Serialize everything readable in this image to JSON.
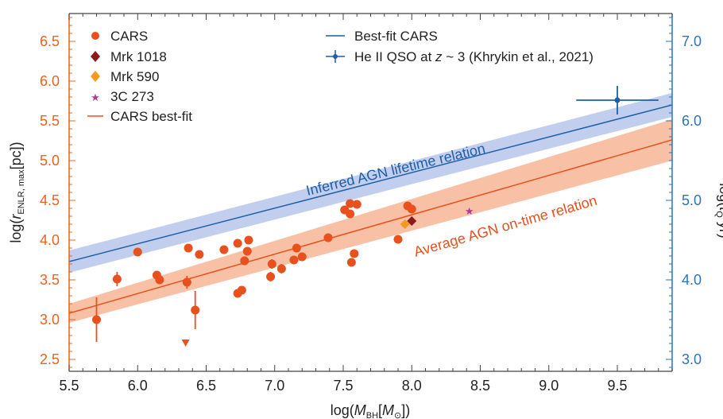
{
  "chart_data": {
    "type": "scatter",
    "xlabel": "log(M_BH[M_⊙])",
    "ylabel": "log(r_ENLR, max[pc])",
    "ylabel_right": "log(t_Q yr)",
    "xlim": [
      5.5,
      9.9
    ],
    "ylim": [
      2.35,
      6.85
    ],
    "y2lim": [
      2.85,
      7.35
    ],
    "x_ticks": [
      5.5,
      6.0,
      6.5,
      7.0,
      7.5,
      8.0,
      8.5,
      9.0,
      9.5
    ],
    "x_tick_labels": [
      "5.5",
      "6.0",
      "6.5",
      "7.0",
      "7.5",
      "8.0",
      "8.5",
      "9.0",
      "9.5"
    ],
    "y_ticks": [
      2.5,
      3.0,
      3.5,
      4.0,
      4.5,
      5.0,
      5.5,
      6.0,
      6.5
    ],
    "y_tick_labels": [
      "2.5",
      "3.0",
      "3.5",
      "4.0",
      "4.5",
      "5.0",
      "5.5",
      "6.0",
      "6.5"
    ],
    "y2_ticks": [
      3.0,
      4.0,
      5.0,
      6.0,
      7.0
    ],
    "y2_tick_labels": [
      "3.0",
      "4.0",
      "5.0",
      "6.0",
      "7.0"
    ],
    "colors": {
      "cars": "#e8501e",
      "mrk1018": "#8b1a1a",
      "mrk590": "#f39a1e",
      "three_c273": "#b03a9a",
      "blue": "#1f5fa6",
      "blue_band": "#aebde8",
      "orange_band": "#f6b08e",
      "left_axis": "#e8641e",
      "right_axis": "#2f73b7"
    },
    "series": [
      {
        "name": "CARS",
        "marker": "circle",
        "points": [
          {
            "x": 5.7,
            "y": 3.0,
            "yerr": 0.28
          },
          {
            "x": 5.85,
            "y": 3.51,
            "yerr": 0.09
          },
          {
            "x": 6.0,
            "y": 3.85
          },
          {
            "x": 6.14,
            "y": 3.56
          },
          {
            "x": 6.16,
            "y": 3.5
          },
          {
            "x": 6.36,
            "y": 3.47,
            "yerr": 0.08
          },
          {
            "x": 6.37,
            "y": 3.9
          },
          {
            "x": 6.42,
            "y": 3.12,
            "yerr": 0.24
          },
          {
            "x": 6.45,
            "y": 3.82
          },
          {
            "x": 6.63,
            "y": 3.88
          },
          {
            "x": 6.73,
            "y": 3.96
          },
          {
            "x": 6.73,
            "y": 3.33
          },
          {
            "x": 6.76,
            "y": 3.37
          },
          {
            "x": 6.78,
            "y": 3.74
          },
          {
            "x": 6.8,
            "y": 3.86
          },
          {
            "x": 6.81,
            "y": 4.0
          },
          {
            "x": 6.97,
            "y": 3.54,
            "yerr": 0.06
          },
          {
            "x": 6.98,
            "y": 3.7,
            "yerr": 0.06
          },
          {
            "x": 7.05,
            "y": 3.64,
            "yerr": 0.06
          },
          {
            "x": 7.14,
            "y": 3.75
          },
          {
            "x": 7.16,
            "y": 3.9,
            "yerr": 0.05
          },
          {
            "x": 7.2,
            "y": 3.79
          },
          {
            "x": 7.39,
            "y": 4.03
          },
          {
            "x": 7.51,
            "y": 4.38
          },
          {
            "x": 7.55,
            "y": 4.33
          },
          {
            "x": 7.55,
            "y": 4.46
          },
          {
            "x": 7.56,
            "y": 3.72
          },
          {
            "x": 7.58,
            "y": 3.83,
            "yerr": 0.05
          },
          {
            "x": 7.6,
            "y": 4.45
          },
          {
            "x": 7.9,
            "y": 4.01
          },
          {
            "x": 7.97,
            "y": 4.43
          },
          {
            "x": 8.0,
            "y": 4.39
          }
        ]
      },
      {
        "name": "CARS upper limit",
        "marker": "triangle-down",
        "points": [
          {
            "x": 6.35,
            "y": 2.7
          }
        ]
      },
      {
        "name": "Mrk 1018",
        "marker": "diamond",
        "points": [
          {
            "x": 8.0,
            "y": 4.24
          }
        ]
      },
      {
        "name": "Mrk 590",
        "marker": "diamond",
        "points": [
          {
            "x": 7.95,
            "y": 4.2
          }
        ]
      },
      {
        "name": "3C 273",
        "marker": "star",
        "points": [
          {
            "x": 8.42,
            "y": 4.37
          }
        ]
      },
      {
        "name": "He II QSO at z ~ 3 (Khrykin et al., 2021)",
        "marker": "errorcross",
        "axis": "right",
        "points": [
          {
            "x": 9.5,
            "y": 6.26,
            "xerr": 0.3,
            "yerr": 0.18
          }
        ]
      }
    ],
    "fits": [
      {
        "name": "CARS best-fit",
        "x": [
          5.5,
          9.9
        ],
        "y": [
          3.08,
          5.26
        ],
        "band_upper": [
          3.2,
          5.52
        ],
        "band_lower": [
          2.96,
          5.0
        ]
      },
      {
        "name": "Best-fit CARS",
        "axis": "right",
        "x": [
          5.5,
          9.9
        ],
        "y": [
          4.23,
          6.2
        ],
        "band_upper": [
          4.37,
          6.35
        ],
        "band_lower": [
          4.09,
          6.05
        ]
      }
    ],
    "legend_left": [
      "CARS",
      "Mrk 1018",
      "Mrk 590",
      "3C 273",
      "CARS best-fit"
    ],
    "legend_right": [
      "Best-fit CARS",
      "He II QSO at z ~ 3 (Khrykin et al., 2021)"
    ],
    "annotations": {
      "blue": "Inferred AGN lifetime relation",
      "orange": "Average AGN on-time relation"
    },
    "legend_placement": "top-left and top-center",
    "grid": false
  }
}
